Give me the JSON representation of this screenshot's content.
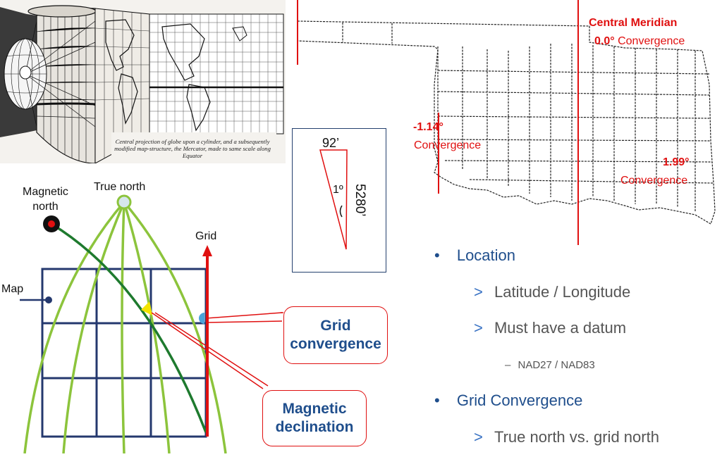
{
  "engraving": {
    "caption": "Central projection of globe upon a cylinder, and a subsequently modified map-structure, the Mercator, made to same scale along Equator"
  },
  "oklahoma_map": {
    "central_meridian_label": "Central Meridian",
    "center_convergence_value": "0.0°",
    "center_convergence_word": "Convergence",
    "west_convergence_value": "-1.14°",
    "west_convergence_word": "Convergence",
    "east_convergence_value": "1.99°",
    "east_convergence_word": "Convergence"
  },
  "triangle_box": {
    "top_label": "92’",
    "angle_label": "1º",
    "side_label": "5280’"
  },
  "convergence_diagram": {
    "magnetic_north_label": "Magnetic\nnorth",
    "true_north_label": "True north",
    "grid_label": "Grid",
    "map_label": "Map",
    "colors": {
      "meridian": "#8cc43c",
      "magnetic": "#1e7a2e",
      "grid_arrow": "#e01010",
      "grid_lines": "#24386e"
    }
  },
  "callouts": {
    "grid_convergence": "Grid\nconvergence",
    "magnetic_declination": "Magnetic\ndeclination"
  },
  "bullets": {
    "location": "Location",
    "lat_long": "Latitude / Longitude",
    "datum": "Must have a datum",
    "nad": "NAD27 / NAD83",
    "grid_convergence": "Grid Convergence",
    "true_vs_grid": "True north vs. grid north"
  }
}
